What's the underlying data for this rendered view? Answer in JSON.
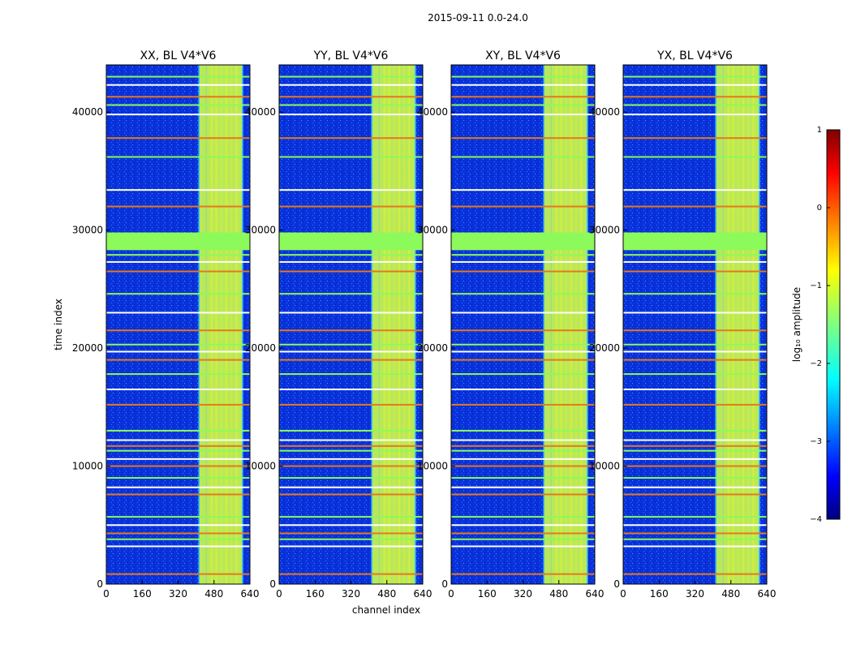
{
  "suptitle": "2015-09-11 0.0-24.0",
  "chart_data": {
    "type": "heatmap",
    "xlabel": "channel index",
    "ylabel": "time index",
    "xlim": [
      0,
      640
    ],
    "ylim": [
      0,
      44000
    ],
    "xticks": [
      0,
      160,
      320,
      480,
      640
    ],
    "yticks": [
      0,
      10000,
      20000,
      30000,
      40000
    ],
    "xtick_labels": [
      "0",
      "160",
      "320",
      "480",
      "640"
    ],
    "ytick_labels": [
      "0",
      "10000",
      "20000",
      "30000",
      "40000"
    ],
    "panels": [
      {
        "title": "XX, BL V4*V6"
      },
      {
        "title": "YY, BL V4*V6"
      },
      {
        "title": "XY, BL V4*V6"
      },
      {
        "title": "YX, BL V4*V6"
      }
    ],
    "band": {
      "channel_start": 410,
      "channel_end": 610,
      "bright_channels": [
        430,
        460,
        480,
        500,
        525,
        545,
        570,
        590
      ]
    },
    "flagged_rows": [
      850,
      3200,
      3800,
      4300,
      5000,
      5700,
      7600,
      8200,
      9000,
      10000,
      10600,
      11300,
      11700,
      12200,
      13000,
      15200,
      16500,
      17800,
      19000,
      19700,
      20300,
      21500,
      23000,
      24600,
      26500,
      27300,
      27900,
      32000,
      33400,
      36200,
      37800,
      39800,
      40600,
      41300,
      42300,
      43000
    ],
    "flagged_block": [
      28300,
      29800
    ],
    "colorbar": {
      "label": "log₁₀ amplitude",
      "range": [
        -4,
        1
      ],
      "ticks": [
        1,
        0,
        -1,
        -2,
        -3,
        -4
      ],
      "tick_labels": [
        "1",
        "0",
        "−1",
        "−2",
        "−3",
        "−4"
      ],
      "colormap": "jet"
    }
  },
  "colors": {
    "background_low": "#0a28e6",
    "band_mid": "#32c8ff",
    "band_high": "#d2f03c",
    "flag_green": "#8cfa5a",
    "flag_orange": "#e6781e",
    "flag_white": "#ffffff"
  }
}
